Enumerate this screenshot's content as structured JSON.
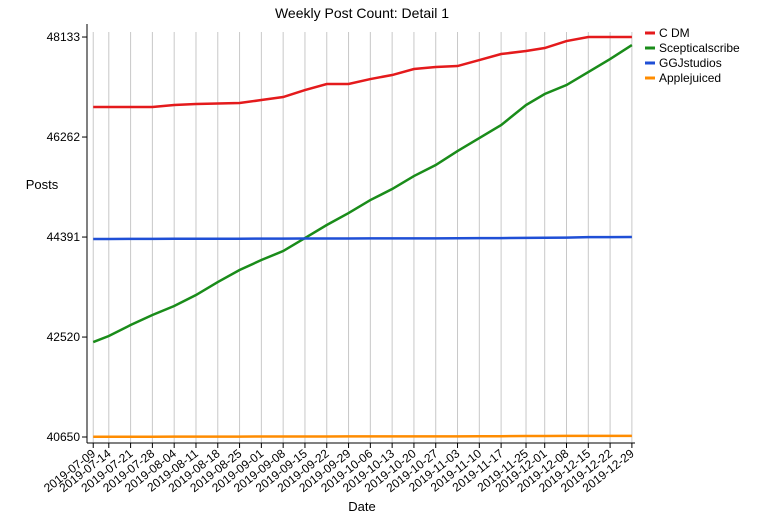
{
  "chart_data": {
    "type": "line",
    "title": "Weekly Post Count: Detail 1",
    "x_label": "Date",
    "y_label": "Posts",
    "x": [
      "2019-07-09",
      "2019-07-14",
      "2019-07-21",
      "2019-07-28",
      "2019-08-04",
      "2019-08-11",
      "2019-08-18",
      "2019-08-25",
      "2019-09-01",
      "2019-09-08",
      "2019-09-15",
      "2019-09-22",
      "2019-09-29",
      "2019-10-06",
      "2019-10-13",
      "2019-10-20",
      "2019-10-27",
      "2019-11-03",
      "2019-11-10",
      "2019-11-17",
      "2019-11-25",
      "2019-12-01",
      "2019-12-08",
      "2019-12-15",
      "2019-12-22",
      "2019-12-29"
    ],
    "xticks": [
      "2019-07-09",
      "2019-07-14",
      "2019-07-21",
      "2019-07-28",
      "2019-08-04",
      "2019-08-11",
      "2019-08-18",
      "2019-08-25",
      "2019-09-01",
      "2019-09-08",
      "2019-09-15",
      "2019-09-22",
      "2019-09-29",
      "2019-10-06",
      "2019-10-13",
      "2019-10-20",
      "2019-10-27",
      "2019-11-03",
      "2019-11-10",
      "2019-11-17",
      "2019-11-25",
      "2019-12-01",
      "2019-12-08",
      "2019-12-15",
      "2019-12-22",
      "2019-12-29"
    ],
    "xlim": [
      "2019-07-07",
      "2019-12-30"
    ],
    "ylim": [
      40538,
      48227
    ],
    "yticks": [
      40650,
      42520,
      44391,
      46262,
      48133
    ],
    "grid": true,
    "legend": "right",
    "series": [
      {
        "name": "C DM",
        "color": "#e41a1c",
        "values": [
          46823,
          46823,
          46823,
          46823,
          46861,
          46879,
          46889,
          46898,
          46954,
          47010,
          47141,
          47254,
          47254,
          47347,
          47422,
          47534,
          47572,
          47590,
          47702,
          47815,
          47871,
          47927,
          48058,
          48133,
          48133,
          48133
        ]
      },
      {
        "name": "Scepticalscribe",
        "color": "#1a8c1a",
        "values": [
          42426,
          42539,
          42745,
          42932,
          43100,
          43306,
          43549,
          43774,
          43961,
          44129,
          44372,
          44616,
          44840,
          45083,
          45289,
          45532,
          45738,
          46000,
          46243,
          46486,
          46861,
          47067,
          47235,
          47478,
          47721,
          47983
        ]
      },
      {
        "name": "GGJstudios",
        "color": "#1f4fd6",
        "values": [
          44354,
          44354,
          44356,
          44357,
          44358,
          44358,
          44359,
          44360,
          44361,
          44362,
          44363,
          44364,
          44365,
          44366,
          44366,
          44367,
          44367,
          44368,
          44370,
          44371,
          44375,
          44378,
          44380,
          44389,
          44390,
          44391
        ]
      },
      {
        "name": "Applejuiced",
        "color": "#ff8c00",
        "values": [
          40655,
          40655,
          40656,
          40656,
          40657,
          40657,
          40658,
          40658,
          40659,
          40659,
          40660,
          40660,
          40661,
          40661,
          40662,
          40662,
          40663,
          40663,
          40664,
          40664,
          40670,
          40670,
          40671,
          40671,
          40671,
          40672
        ]
      }
    ]
  }
}
